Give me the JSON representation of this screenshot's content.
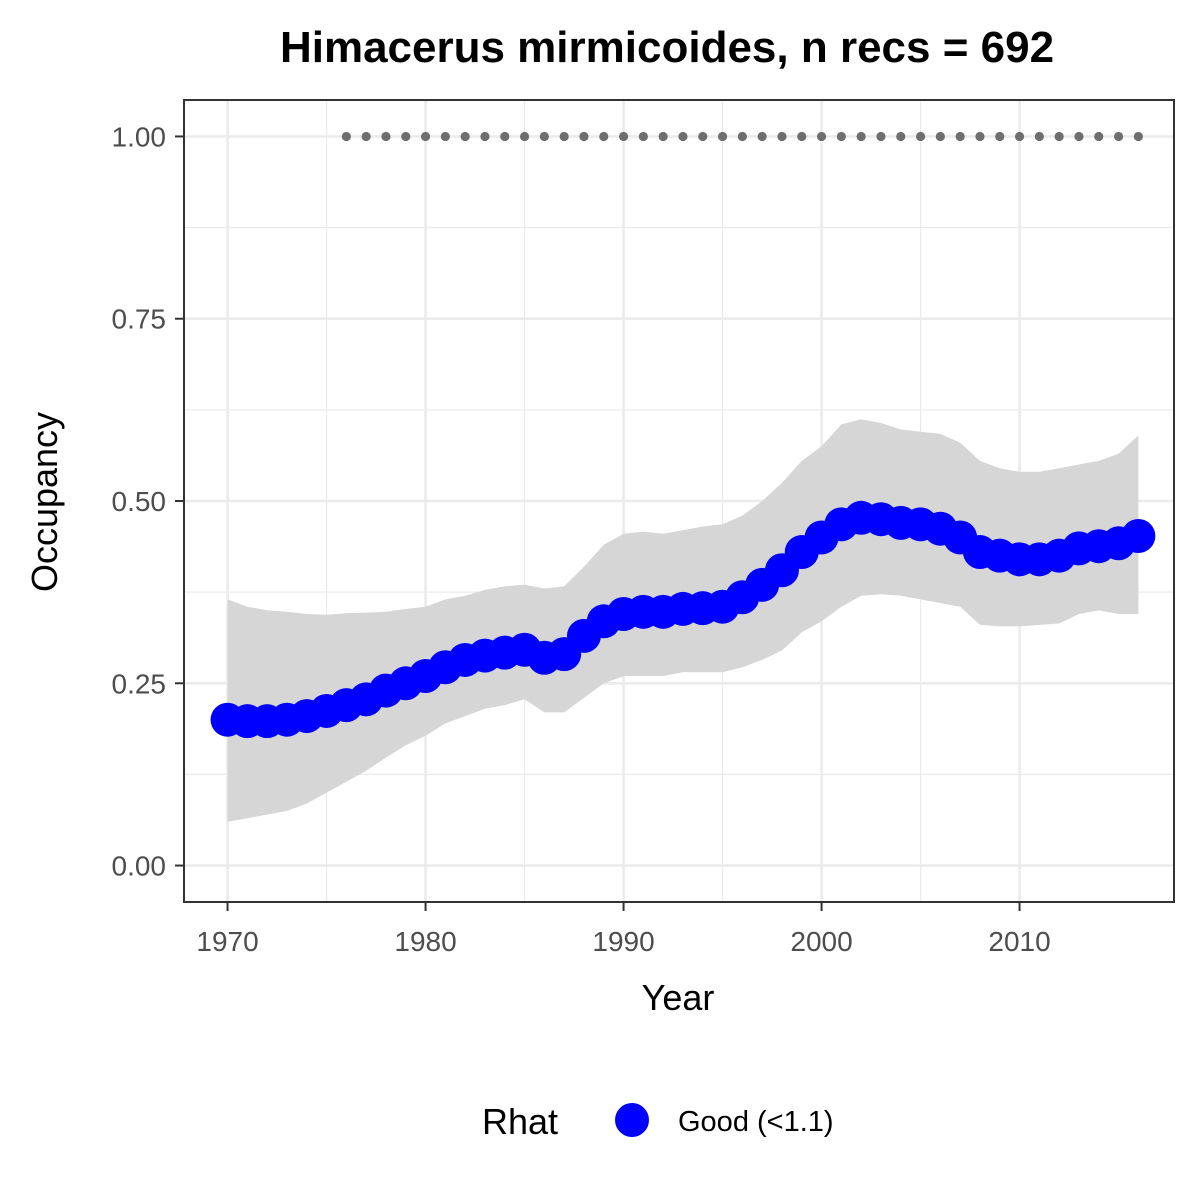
{
  "chart_data": {
    "type": "line",
    "title": "Himacerus mirmicoides, n recs = 692",
    "xlabel": "Year",
    "ylabel": "Occupancy",
    "xlim": [
      1967.8,
      2017.8
    ],
    "ylim": [
      -0.05,
      1.05
    ],
    "x_ticks": [
      1970,
      1980,
      1990,
      2000,
      2010
    ],
    "x_tick_labels": [
      "1970",
      "1980",
      "1990",
      "2000",
      "2010"
    ],
    "y_ticks": [
      0,
      0.25,
      0.5,
      0.75,
      1
    ],
    "y_tick_labels": [
      "0.00",
      "0.25",
      "0.50",
      "0.75",
      "1.00"
    ],
    "grid": true,
    "legend": {
      "title": "Rhat",
      "placement": "bottom",
      "entries": [
        {
          "label": "Good (<1.1)",
          "color": "#0000ff"
        }
      ]
    },
    "colors": {
      "points": "#0000ff",
      "ribbon": "#d6d6d6",
      "record_dots": "#6e6e6e",
      "grid": "#ebebeb",
      "border": "#333333"
    },
    "x": [
      1970,
      1971,
      1972,
      1973,
      1974,
      1975,
      1976,
      1977,
      1978,
      1979,
      1980,
      1981,
      1982,
      1983,
      1984,
      1985,
      1986,
      1987,
      1988,
      1989,
      1990,
      1991,
      1992,
      1993,
      1994,
      1995,
      1996,
      1997,
      1998,
      1999,
      2000,
      2001,
      2002,
      2003,
      2004,
      2005,
      2006,
      2007,
      2008,
      2009,
      2010,
      2011,
      2012,
      2013,
      2014,
      2015,
      2016
    ],
    "series": [
      {
        "values": [
          0.2,
          0.198,
          0.198,
          0.2,
          0.205,
          0.212,
          0.22,
          0.228,
          0.24,
          0.25,
          0.26,
          0.272,
          0.282,
          0.288,
          0.292,
          0.296,
          0.285,
          0.29,
          0.315,
          0.335,
          0.345,
          0.348,
          0.348,
          0.352,
          0.353,
          0.355,
          0.368,
          0.385,
          0.405,
          0.43,
          0.45,
          0.468,
          0.477,
          0.475,
          0.47,
          0.468,
          0.462,
          0.45,
          0.43,
          0.425,
          0.42,
          0.42,
          0.425,
          0.435,
          0.438,
          0.442,
          0.452
        ],
        "lower": [
          0.06,
          0.065,
          0.07,
          0.075,
          0.085,
          0.1,
          0.115,
          0.13,
          0.148,
          0.165,
          0.178,
          0.195,
          0.205,
          0.215,
          0.22,
          0.228,
          0.21,
          0.21,
          0.23,
          0.25,
          0.26,
          0.26,
          0.26,
          0.265,
          0.265,
          0.265,
          0.272,
          0.282,
          0.295,
          0.32,
          0.335,
          0.355,
          0.37,
          0.372,
          0.37,
          0.365,
          0.36,
          0.355,
          0.33,
          0.328,
          0.328,
          0.33,
          0.332,
          0.345,
          0.35,
          0.345,
          0.345
        ],
        "upper": [
          0.365,
          0.355,
          0.35,
          0.348,
          0.345,
          0.344,
          0.346,
          0.347,
          0.348,
          0.352,
          0.355,
          0.365,
          0.37,
          0.378,
          0.383,
          0.385,
          0.38,
          0.383,
          0.41,
          0.44,
          0.455,
          0.458,
          0.455,
          0.46,
          0.465,
          0.468,
          0.48,
          0.5,
          0.525,
          0.555,
          0.575,
          0.605,
          0.612,
          0.607,
          0.598,
          0.595,
          0.592,
          0.58,
          0.555,
          0.545,
          0.54,
          0.54,
          0.545,
          0.55,
          0.555,
          0.565,
          0.59
        ]
      }
    ],
    "record_years": [
      1976,
      1977,
      1978,
      1979,
      1980,
      1981,
      1982,
      1983,
      1984,
      1985,
      1986,
      1987,
      1988,
      1989,
      1990,
      1991,
      1992,
      1993,
      1994,
      1995,
      1996,
      1997,
      1998,
      1999,
      2000,
      2001,
      2002,
      2003,
      2004,
      2005,
      2006,
      2007,
      2008,
      2009,
      2010,
      2011,
      2012,
      2013,
      2014,
      2015,
      2016
    ],
    "record_value": 1.0
  }
}
